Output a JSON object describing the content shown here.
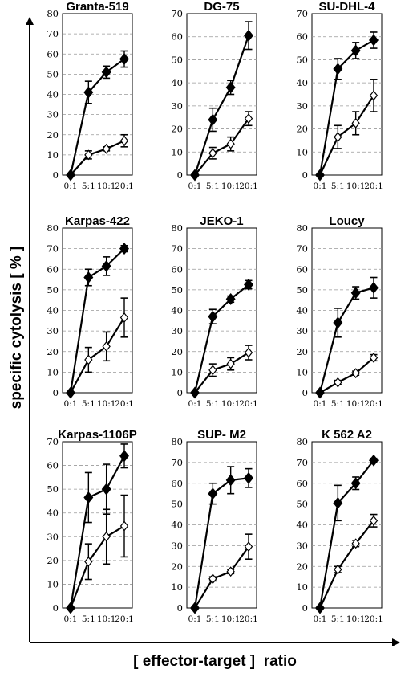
{
  "figure": {
    "ylabel": "specific cytolysis [ % ]",
    "xlabel": "[ effector-target ]  ratio"
  },
  "chart_data": [
    {
      "type": "line",
      "title": "Granta-519",
      "categories": [
        "0:1",
        "5:1",
        "10:1",
        "20:1"
      ],
      "ylim": [
        0,
        80
      ],
      "yticks": [
        0,
        10,
        20,
        30,
        40,
        50,
        60,
        70,
        80
      ],
      "grid": true,
      "series": [
        {
          "marker": "filled-diamond",
          "values": [
            0,
            41,
            51,
            57.5
          ],
          "errors": [
            0,
            5.5,
            3,
            4
          ]
        },
        {
          "marker": "open-diamond",
          "values": [
            0,
            10,
            13,
            17
          ],
          "errors": [
            0,
            2,
            1,
            3
          ]
        }
      ]
    },
    {
      "type": "line",
      "title": "DG-75",
      "categories": [
        "0:1",
        "5:1",
        "10:1",
        "20:1"
      ],
      "ylim": [
        0,
        70
      ],
      "yticks": [
        0,
        10,
        20,
        30,
        40,
        50,
        60,
        70
      ],
      "grid": true,
      "series": [
        {
          "marker": "filled-diamond",
          "values": [
            0,
            24,
            38,
            60.5
          ],
          "errors": [
            0,
            5,
            3,
            6
          ]
        },
        {
          "marker": "open-diamond",
          "values": [
            0,
            9.5,
            13.5,
            24.5
          ],
          "errors": [
            0,
            2.5,
            3,
            3
          ]
        }
      ]
    },
    {
      "type": "line",
      "title": "SU-DHL-4",
      "categories": [
        "0:1",
        "5:1",
        "10:1",
        "20:1"
      ],
      "ylim": [
        0,
        70
      ],
      "yticks": [
        0,
        10,
        20,
        30,
        40,
        50,
        60,
        70
      ],
      "grid": true,
      "series": [
        {
          "marker": "filled-diamond",
          "values": [
            0,
            46,
            54,
            58.5
          ],
          "errors": [
            0,
            4.5,
            3.5,
            3.5
          ]
        },
        {
          "marker": "open-diamond",
          "values": [
            0,
            16.5,
            22.5,
            34.5
          ],
          "errors": [
            0,
            5,
            5,
            7
          ]
        }
      ]
    },
    {
      "type": "line",
      "title": "Karpas-422",
      "categories": [
        "0:1",
        "5:1",
        "10:1",
        "20:1"
      ],
      "ylim": [
        0,
        80
      ],
      "yticks": [
        0,
        10,
        20,
        30,
        40,
        50,
        60,
        70,
        80
      ],
      "grid": true,
      "series": [
        {
          "marker": "filled-diamond",
          "values": [
            0,
            56,
            61.5,
            70
          ],
          "errors": [
            0,
            4,
            4.5,
            1.5
          ]
        },
        {
          "marker": "open-diamond",
          "values": [
            0,
            16,
            22.5,
            36.5
          ],
          "errors": [
            0,
            6,
            7,
            9.5
          ]
        }
      ]
    },
    {
      "type": "line",
      "title": "JEKO-1",
      "categories": [
        "0:1",
        "5:1",
        "10:1",
        "20:1"
      ],
      "ylim": [
        0,
        80
      ],
      "yticks": [
        0,
        10,
        20,
        30,
        40,
        50,
        60,
        70,
        80
      ],
      "grid": true,
      "series": [
        {
          "marker": "filled-diamond",
          "values": [
            0,
            37,
            45.5,
            52.5
          ],
          "errors": [
            0,
            3.5,
            1.5,
            2
          ]
        },
        {
          "marker": "open-diamond",
          "values": [
            0,
            11,
            14,
            19.5
          ],
          "errors": [
            0,
            3,
            3,
            3.5
          ]
        }
      ]
    },
    {
      "type": "line",
      "title": "Loucy",
      "categories": [
        "0:1",
        "5:1",
        "10:1",
        "20:1"
      ],
      "ylim": [
        0,
        80
      ],
      "yticks": [
        0,
        10,
        20,
        30,
        40,
        50,
        60,
        70,
        80
      ],
      "grid": true,
      "series": [
        {
          "marker": "filled-diamond",
          "values": [
            0,
            34,
            48.5,
            51
          ],
          "errors": [
            0,
            7,
            3,
            5
          ]
        },
        {
          "marker": "open-diamond",
          "values": [
            0,
            5,
            9.5,
            17
          ],
          "errors": [
            0,
            1,
            1,
            1.5
          ]
        }
      ]
    },
    {
      "type": "line",
      "title": "Karpas-1106P",
      "categories": [
        "0:1",
        "5:1",
        "10:1",
        "20:1"
      ],
      "ylim": [
        0,
        70
      ],
      "yticks": [
        0,
        10,
        20,
        30,
        40,
        50,
        60,
        70
      ],
      "grid": true,
      "series": [
        {
          "marker": "filled-diamond",
          "values": [
            0,
            46.5,
            50,
            64
          ],
          "errors": [
            0,
            10.5,
            10.5,
            5
          ]
        },
        {
          "marker": "open-diamond",
          "values": [
            0,
            19.5,
            30,
            34.5
          ],
          "errors": [
            0,
            7.5,
            11.5,
            13
          ]
        }
      ]
    },
    {
      "type": "line",
      "title": "SUP- M2",
      "categories": [
        "0:1",
        "5:1",
        "10:1",
        "20:1"
      ],
      "ylim": [
        0,
        80
      ],
      "yticks": [
        0,
        10,
        20,
        30,
        40,
        50,
        60,
        70,
        80
      ],
      "grid": true,
      "series": [
        {
          "marker": "filled-diamond",
          "values": [
            0,
            55,
            61.5,
            62.5
          ],
          "errors": [
            0,
            5,
            6.5,
            4.5
          ]
        },
        {
          "marker": "open-diamond",
          "values": [
            0,
            14,
            17.5,
            29.5
          ],
          "errors": [
            0,
            1,
            1,
            6
          ]
        }
      ]
    },
    {
      "type": "line",
      "title": "K 562 A2",
      "categories": [
        "0:1",
        "5:1",
        "10:1",
        "20:1"
      ],
      "ylim": [
        0,
        80
      ],
      "yticks": [
        0,
        10,
        20,
        30,
        40,
        50,
        60,
        70,
        80
      ],
      "grid": true,
      "series": [
        {
          "marker": "filled-diamond",
          "values": [
            0,
            50.5,
            60,
            71
          ],
          "errors": [
            0,
            8.5,
            3,
            1
          ]
        },
        {
          "marker": "open-diamond",
          "values": [
            0,
            18.5,
            31,
            42
          ],
          "errors": [
            0,
            1.5,
            1.5,
            3
          ]
        }
      ]
    }
  ]
}
